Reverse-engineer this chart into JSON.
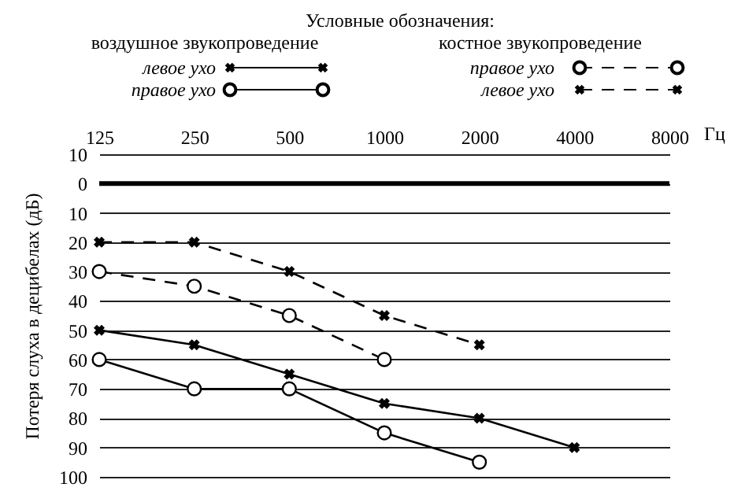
{
  "chart_data": {
    "type": "line",
    "legend_title": "Условные обозначения:",
    "annotations": [
      "воздушное звукопроведение",
      "костное звукопроведение"
    ],
    "xlabel": "Гц",
    "ylabel": "Потеря слуха в децибелах (дБ)",
    "categories": [
      "125",
      "250",
      "500",
      "1000",
      "2000",
      "4000",
      "8000"
    ],
    "series": [
      {
        "name": "левое ухо",
        "color": "#000000",
        "marker": "cross",
        "line_style": "solid",
        "values": [
          50,
          55,
          65,
          75,
          80,
          90,
          null
        ]
      },
      {
        "name": "правое ухо",
        "color": "#000000",
        "marker": "circle",
        "line_style": "solid",
        "values": [
          60,
          70,
          70,
          85,
          95,
          null,
          null
        ]
      },
      {
        "name": "правое ухо",
        "color": "#000000",
        "marker": "circle",
        "line_style": "dashed",
        "values": [
          30,
          35,
          45,
          60,
          null,
          null,
          null
        ]
      },
      {
        "name": "левое ухо",
        "color": "#000000",
        "marker": "cross",
        "line_style": "dashed",
        "values": [
          20,
          20,
          30,
          45,
          55,
          null,
          null
        ]
      }
    ],
    "ylim": [
      100,
      -10
    ],
    "yticks": [
      {
        "value": -10,
        "label": "10"
      },
      0,
      10,
      20,
      30,
      40,
      50,
      60,
      70,
      80,
      90,
      100
    ],
    "ref_lines": [
      {
        "axis": "y",
        "value": 0
      }
    ],
    "grid": "y",
    "legend": "top"
  }
}
